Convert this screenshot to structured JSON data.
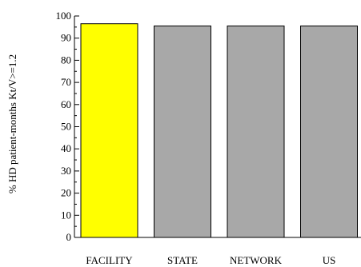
{
  "chart_data": {
    "type": "bar",
    "categories": [
      "FACILITY",
      "STATE",
      "NETWORK",
      "US"
    ],
    "values": [
      96.5,
      95.5,
      95.5,
      95.5
    ],
    "title": "",
    "xlabel": "",
    "ylabel": "% HD patient-months Kt/V>=1.2",
    "ylim": [
      0,
      100
    ],
    "yticks": [
      "0",
      "10",
      "20",
      "30",
      "40",
      "50",
      "60",
      "70",
      "80",
      "90",
      "100"
    ],
    "grid": false,
    "bar_colors": [
      "#ffff00",
      "#a8a8a8",
      "#a8a8a8",
      "#a8a8a8"
    ],
    "bar_edge_color": "#000000"
  }
}
